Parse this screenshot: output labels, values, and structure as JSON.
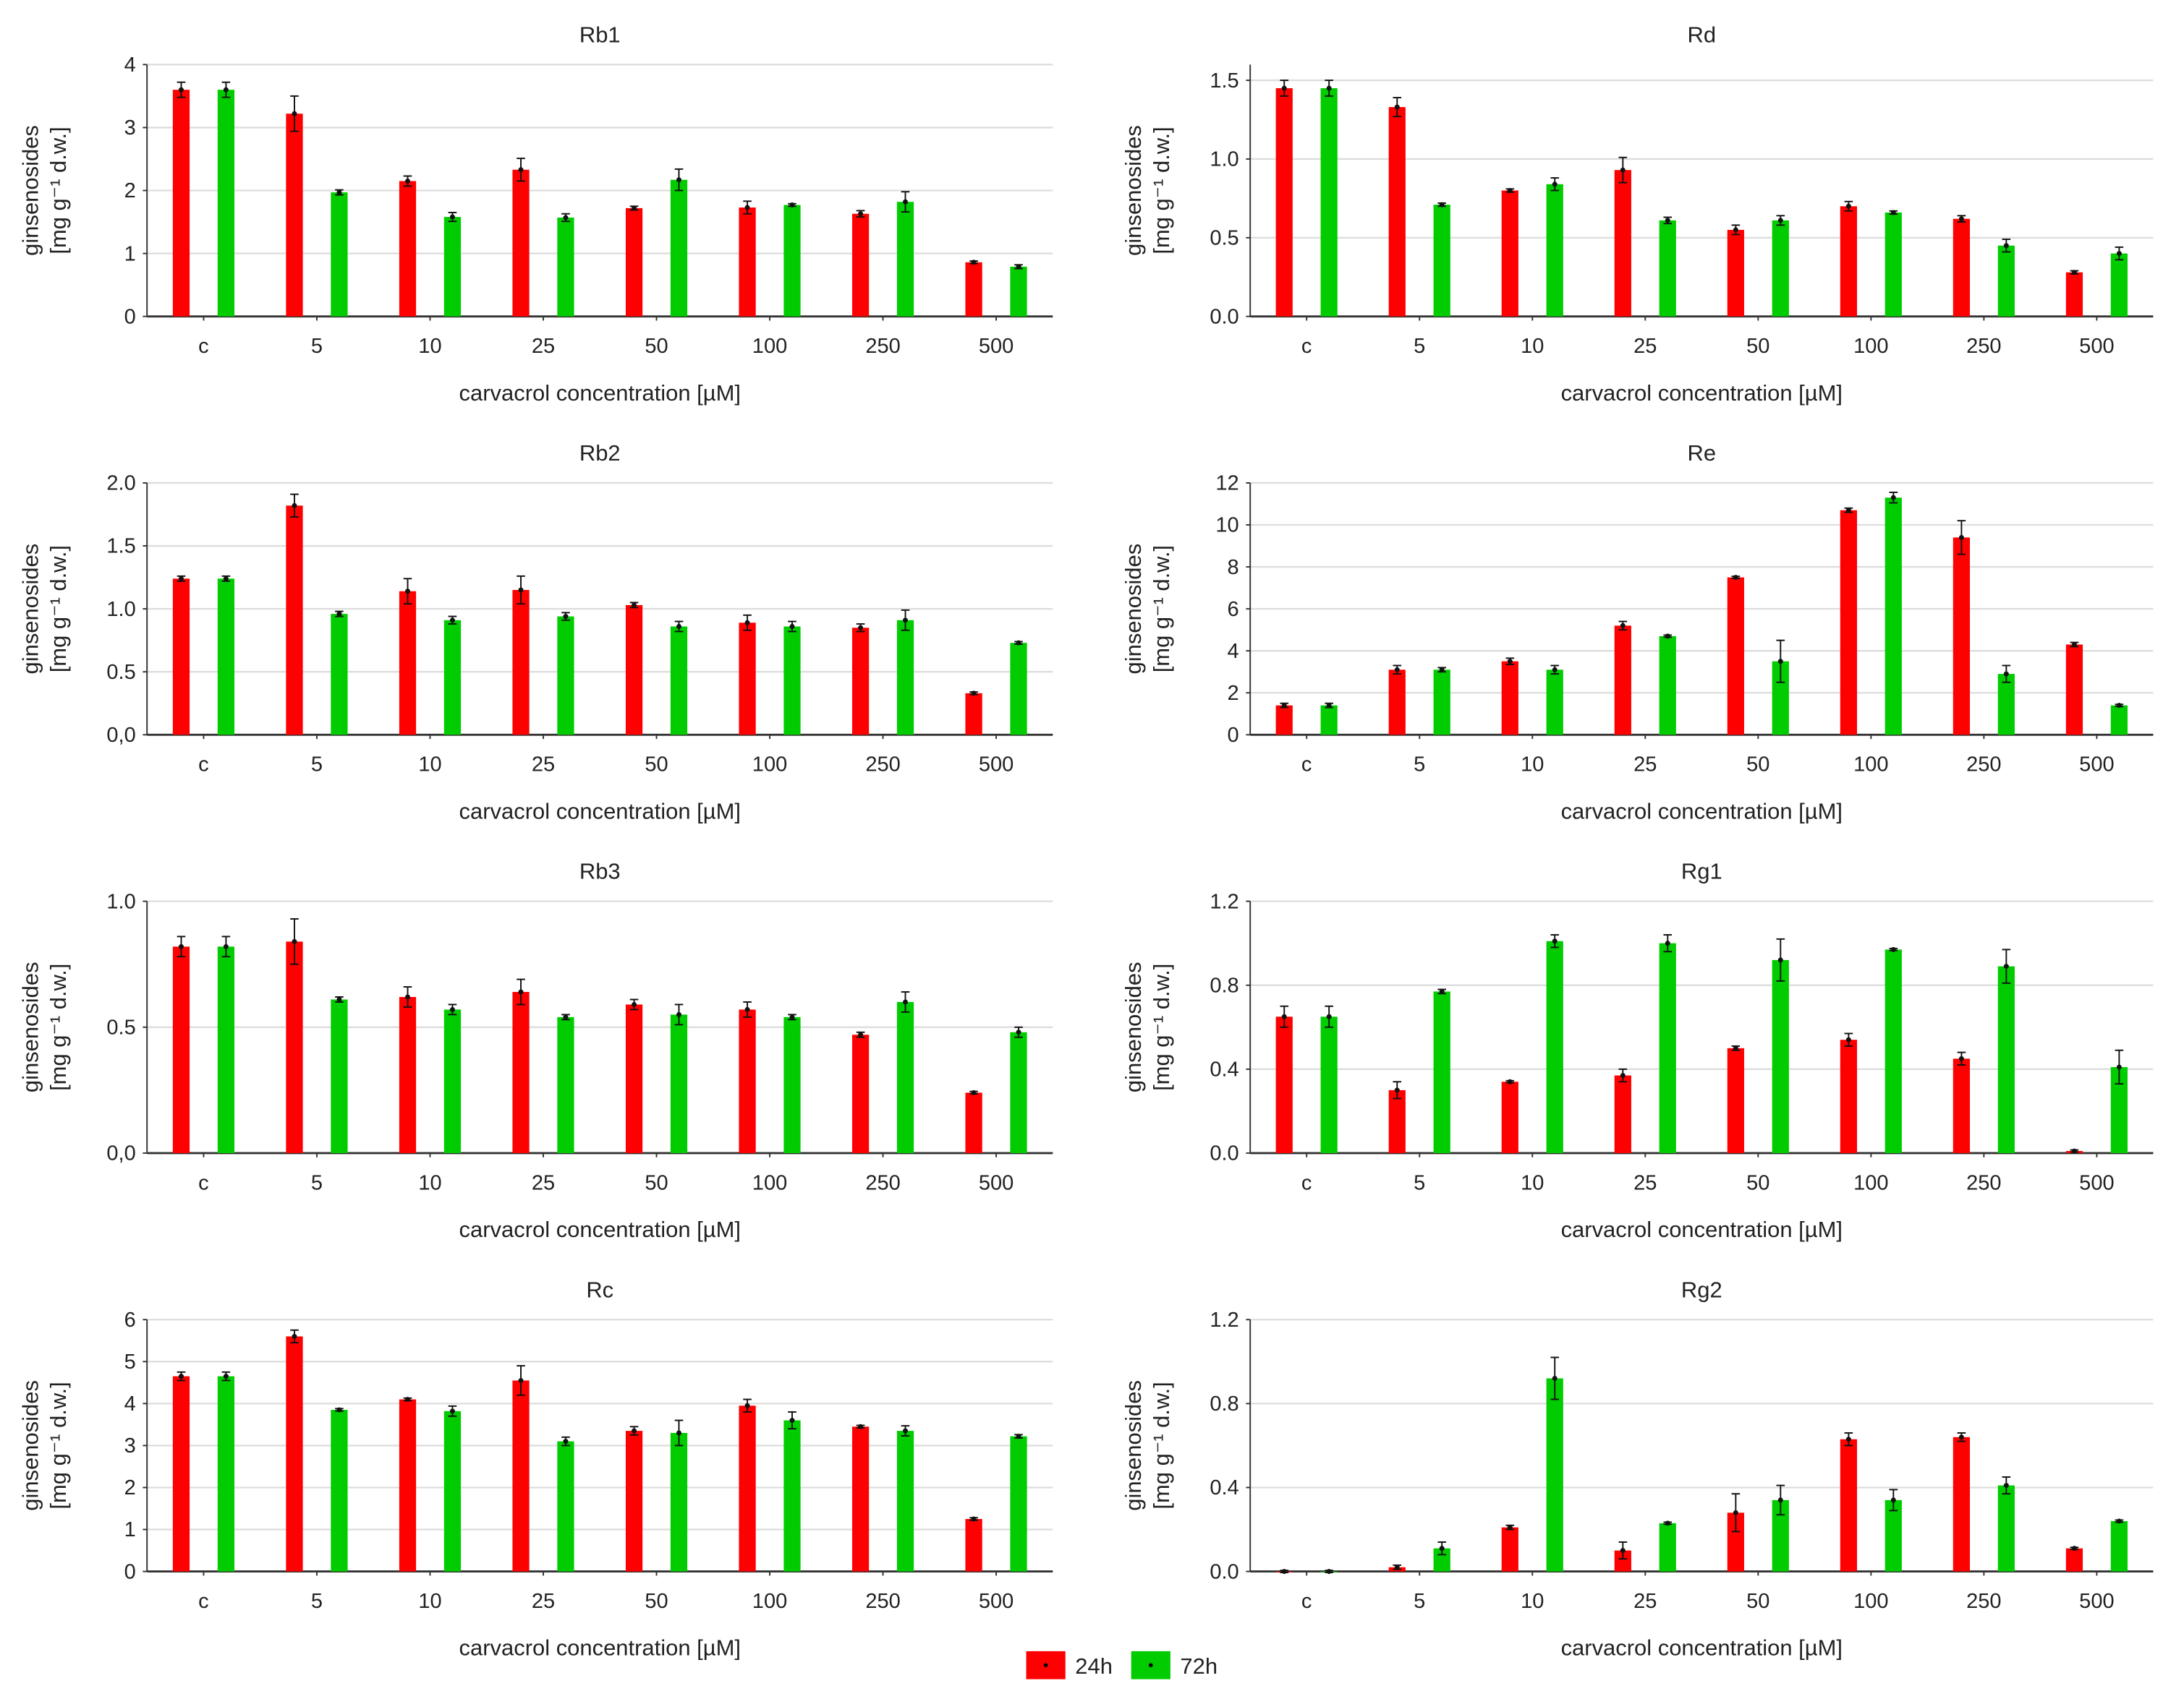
{
  "legend": [
    {
      "label": "24h",
      "color": "#ff0000"
    },
    {
      "label": "72h",
      "color": "#00cc00"
    }
  ],
  "chart_data": [
    {
      "type": "bar",
      "title": "Rb1",
      "xlabel": "carvacrol concentration [µM]",
      "ylabel": "ginsenosides",
      "ylabel2": "[mg g⁻¹ d.w.]",
      "categories": [
        "c",
        "5",
        "10",
        "25",
        "50",
        "100",
        "250",
        "500"
      ],
      "ylim": [
        0,
        4
      ],
      "yticks": [
        0,
        1,
        2,
        3,
        4
      ],
      "yticklabels": [
        "0",
        "1",
        "2",
        "3",
        "4"
      ],
      "series": [
        {
          "name": "24h",
          "values": [
            3.6,
            3.22,
            2.15,
            2.33,
            1.72,
            1.73,
            1.63,
            0.86
          ],
          "errors": [
            0.12,
            0.28,
            0.08,
            0.18,
            0.03,
            0.1,
            0.05,
            0.02
          ]
        },
        {
          "name": "72h",
          "values": [
            3.6,
            1.97,
            1.58,
            1.57,
            2.17,
            1.77,
            1.82,
            0.79
          ],
          "errors": [
            0.12,
            0.04,
            0.07,
            0.06,
            0.17,
            0.02,
            0.16,
            0.03
          ]
        }
      ]
    },
    {
      "type": "bar",
      "title": "Rd",
      "xlabel": "carvacrol concentration [µM]",
      "ylabel": "ginsenosides",
      "ylabel2": "[mg g⁻¹ d.w.]",
      "categories": [
        "c",
        "5",
        "10",
        "25",
        "50",
        "100",
        "250",
        "500"
      ],
      "ylim": [
        0,
        1.6
      ],
      "yticks": [
        0,
        0.5,
        1,
        1.5
      ],
      "yticklabels": [
        "0.0",
        "0.5",
        "1.0",
        "1.5"
      ],
      "series": [
        {
          "name": "24h",
          "values": [
            1.45,
            1.33,
            0.8,
            0.93,
            0.55,
            0.7,
            0.62,
            0.28
          ],
          "errors": [
            0.05,
            0.06,
            0.01,
            0.08,
            0.03,
            0.03,
            0.02,
            0.01
          ]
        },
        {
          "name": "72h",
          "values": [
            1.45,
            0.71,
            0.84,
            0.61,
            0.61,
            0.66,
            0.45,
            0.4
          ],
          "errors": [
            0.05,
            0.01,
            0.04,
            0.02,
            0.03,
            0.01,
            0.04,
            0.04
          ]
        }
      ]
    },
    {
      "type": "bar",
      "title": "Rb2",
      "xlabel": "carvacrol concentration [µM]",
      "ylabel": "ginsenosides",
      "ylabel2": "[mg g⁻¹ d.w.]",
      "categories": [
        "c",
        "5",
        "10",
        "25",
        "50",
        "100",
        "250",
        "500"
      ],
      "ylim": [
        0,
        2
      ],
      "yticks": [
        0,
        0.5,
        1,
        1.5,
        2
      ],
      "yticklabels": [
        "0,0",
        "0.5",
        "1.0",
        "1.5",
        "2.0"
      ],
      "series": [
        {
          "name": "24h",
          "values": [
            1.24,
            1.82,
            1.14,
            1.15,
            1.03,
            0.89,
            0.85,
            0.33
          ],
          "errors": [
            0.02,
            0.09,
            0.1,
            0.11,
            0.02,
            0.06,
            0.03,
            0.01
          ]
        },
        {
          "name": "72h",
          "values": [
            1.24,
            0.96,
            0.91,
            0.94,
            0.86,
            0.86,
            0.91,
            0.73
          ],
          "errors": [
            0.02,
            0.02,
            0.03,
            0.03,
            0.04,
            0.04,
            0.08,
            0.01
          ]
        }
      ]
    },
    {
      "type": "bar",
      "title": "Re",
      "xlabel": "carvacrol concentration [µM]",
      "ylabel": "ginsenosides",
      "ylabel2": "[mg g⁻¹ d.w.]",
      "categories": [
        "c",
        "5",
        "10",
        "25",
        "50",
        "100",
        "250",
        "500"
      ],
      "ylim": [
        0,
        12
      ],
      "yticks": [
        0,
        2,
        4,
        6,
        8,
        10,
        12
      ],
      "yticklabels": [
        "0",
        "2",
        "4",
        "6",
        "8",
        "10",
        "12"
      ],
      "series": [
        {
          "name": "24h",
          "values": [
            1.4,
            3.1,
            3.5,
            5.2,
            7.5,
            10.7,
            9.4,
            4.3
          ],
          "errors": [
            0.1,
            0.2,
            0.15,
            0.2,
            0.05,
            0.1,
            0.8,
            0.1
          ]
        },
        {
          "name": "72h",
          "values": [
            1.4,
            3.1,
            3.1,
            4.7,
            3.5,
            11.3,
            2.9,
            1.4
          ],
          "errors": [
            0.1,
            0.1,
            0.2,
            0.05,
            1.0,
            0.25,
            0.4,
            0.05
          ]
        }
      ]
    },
    {
      "type": "bar",
      "title": "Rb3",
      "xlabel": "carvacrol concentration [µM]",
      "ylabel": "ginsenosides",
      "ylabel2": "[mg g⁻¹ d.w.]",
      "categories": [
        "c",
        "5",
        "10",
        "25",
        "50",
        "100",
        "250",
        "500"
      ],
      "ylim": [
        0,
        1
      ],
      "yticks": [
        0,
        0.5,
        1
      ],
      "yticklabels": [
        "0,0",
        "0.5",
        "1.0"
      ],
      "series": [
        {
          "name": "24h",
          "values": [
            0.82,
            0.84,
            0.62,
            0.64,
            0.59,
            0.57,
            0.47,
            0.24
          ],
          "errors": [
            0.04,
            0.09,
            0.04,
            0.05,
            0.02,
            0.03,
            0.01,
            0.005
          ]
        },
        {
          "name": "72h",
          "values": [
            0.82,
            0.61,
            0.57,
            0.54,
            0.55,
            0.54,
            0.6,
            0.48
          ],
          "errors": [
            0.04,
            0.01,
            0.02,
            0.01,
            0.04,
            0.01,
            0.04,
            0.02
          ]
        }
      ]
    },
    {
      "type": "bar",
      "title": "Rg1",
      "xlabel": "carvacrol concentration [µM]",
      "ylabel": "ginsenosides",
      "ylabel2": "[mg g⁻¹ d.w.]",
      "categories": [
        "c",
        "5",
        "10",
        "25",
        "50",
        "100",
        "250",
        "500"
      ],
      "ylim": [
        0,
        1.2
      ],
      "yticks": [
        0,
        0.4,
        0.8,
        1.2
      ],
      "yticklabels": [
        "0.0",
        "0.4",
        "0.8",
        "1.2"
      ],
      "series": [
        {
          "name": "24h",
          "values": [
            0.65,
            0.3,
            0.34,
            0.37,
            0.5,
            0.54,
            0.45,
            0.01
          ],
          "errors": [
            0.05,
            0.04,
            0.005,
            0.03,
            0.01,
            0.03,
            0.03,
            0.005
          ]
        },
        {
          "name": "72h",
          "values": [
            0.65,
            0.77,
            1.01,
            1.0,
            0.92,
            0.97,
            0.89,
            0.41
          ],
          "errors": [
            0.05,
            0.01,
            0.03,
            0.04,
            0.1,
            0.005,
            0.08,
            0.08
          ]
        }
      ]
    },
    {
      "type": "bar",
      "title": "Rc",
      "xlabel": "carvacrol concentration [µM]",
      "ylabel": "ginsenosides",
      "ylabel2": "[mg g⁻¹ d.w.]",
      "categories": [
        "c",
        "5",
        "10",
        "25",
        "50",
        "100",
        "250",
        "500"
      ],
      "ylim": [
        0,
        6
      ],
      "yticks": [
        0,
        1,
        2,
        3,
        4,
        5,
        6
      ],
      "yticklabels": [
        "0",
        "1",
        "2",
        "3",
        "4",
        "5",
        "6"
      ],
      "series": [
        {
          "name": "24h",
          "values": [
            4.65,
            5.6,
            4.1,
            4.55,
            3.35,
            3.95,
            3.45,
            1.25
          ],
          "errors": [
            0.1,
            0.15,
            0.03,
            0.35,
            0.1,
            0.15,
            0.03,
            0.03
          ]
        },
        {
          "name": "72h",
          "values": [
            4.65,
            3.85,
            3.82,
            3.1,
            3.3,
            3.6,
            3.35,
            3.22
          ],
          "errors": [
            0.1,
            0.03,
            0.12,
            0.1,
            0.3,
            0.2,
            0.12,
            0.04
          ]
        }
      ]
    },
    {
      "type": "bar",
      "title": "Rg2",
      "xlabel": "carvacrol concentration [µM]",
      "ylabel": "ginsenosides",
      "ylabel2": "[mg g⁻¹ d.w.]",
      "categories": [
        "c",
        "5",
        "10",
        "25",
        "50",
        "100",
        "250",
        "500"
      ],
      "ylim": [
        0,
        1.2
      ],
      "yticks": [
        0,
        0.4,
        0.8,
        1.2
      ],
      "yticklabels": [
        "0.0",
        "0.4",
        "0.8",
        "1.2"
      ],
      "series": [
        {
          "name": "24h",
          "values": [
            0.0,
            0.02,
            0.21,
            0.1,
            0.28,
            0.63,
            0.64,
            0.11
          ],
          "errors": [
            0.005,
            0.01,
            0.01,
            0.04,
            0.09,
            0.03,
            0.02,
            0.005
          ]
        },
        {
          "name": "72h",
          "values": [
            0.0,
            0.11,
            0.92,
            0.23,
            0.34,
            0.34,
            0.41,
            0.24
          ],
          "errors": [
            0.005,
            0.03,
            0.1,
            0.005,
            0.07,
            0.05,
            0.04,
            0.005
          ]
        }
      ]
    }
  ]
}
